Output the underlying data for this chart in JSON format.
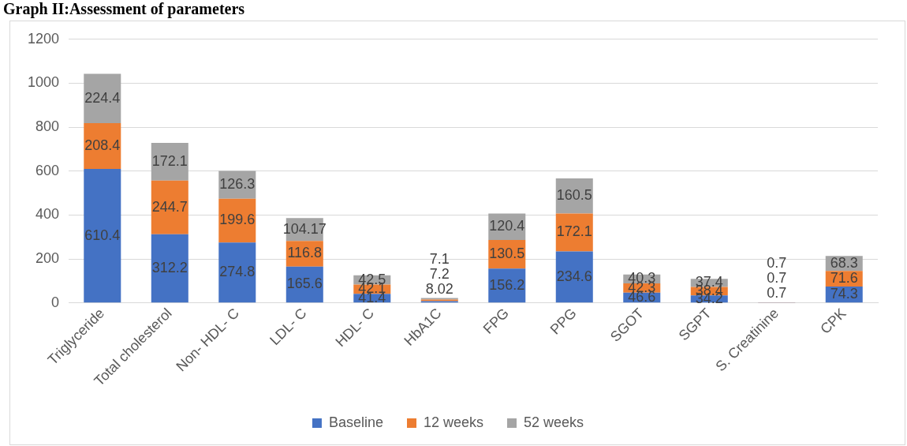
{
  "chart_data": {
    "type": "bar",
    "title": "Graph II:Assessment of parameters",
    "stacked": true,
    "grid": "y",
    "legend": "bottom",
    "data_labels": true,
    "categories": [
      "Triglyceride",
      "Total cholesterol",
      "Non- HDL- C",
      "LDL- C",
      "HDL- C",
      "HbA1C",
      "FPG",
      "PPG",
      "SGOT",
      "SGPT",
      "S. Creatinine",
      "CPK"
    ],
    "series": [
      {
        "name": "Baseline",
        "color": "#4472c4",
        "values": [
          610.4,
          312.2,
          274.8,
          165.6,
          41.4,
          8.02,
          156.2,
          234.6,
          46.6,
          34.2,
          0.7,
          74.3
        ]
      },
      {
        "name": "12 weeks",
        "color": "#ed7d31",
        "values": [
          208.4,
          244.7,
          199.6,
          116.8,
          42.1,
          7.2,
          130.5,
          172.1,
          42.3,
          38.4,
          0.7,
          71.6
        ]
      },
      {
        "name": "52 weeks",
        "color": "#a5a5a5",
        "values": [
          224.4,
          172.1,
          126.3,
          104.17,
          42.5,
          7.1,
          120.4,
          160.5,
          40.3,
          37.4,
          0.7,
          68.3
        ]
      }
    ],
    "ylim": [
      0,
      1200
    ],
    "yticks": [
      0,
      200,
      400,
      600,
      800,
      1000,
      1200
    ]
  }
}
